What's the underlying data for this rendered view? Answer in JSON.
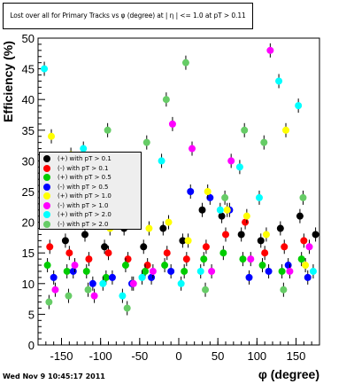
{
  "footer_timestamp": "Wed Nov  9 10:45:17 2011",
  "chart_data": {
    "type": "scatter",
    "title": "Lost over all for Primary Tracks vs φ (degree) at | η | <= 1.0 at pT > 0.11",
    "xlabel": "φ (degree)",
    "ylabel": "Efficiency (%)",
    "xlim": [
      -180,
      180
    ],
    "ylim": [
      0,
      50
    ],
    "x_ticks": [
      -150,
      -100,
      -50,
      0,
      50,
      100,
      150
    ],
    "y_ticks": [
      0,
      5,
      10,
      15,
      20,
      25,
      30,
      35,
      40,
      45,
      50
    ],
    "grid": false,
    "legend_position": "left-middle",
    "series": [
      {
        "name": "(+) with pT > 0.1",
        "color": "#000000",
        "x": [
          -170,
          -145,
          -120,
          -95,
          -70,
          -45,
          -20,
          5,
          30,
          55,
          80,
          105,
          130,
          155,
          175
        ],
        "y": [
          21,
          17,
          18,
          16,
          19,
          16,
          19,
          17,
          22,
          21,
          18,
          17,
          19,
          21,
          18
        ]
      },
      {
        "name": "(-) with pT > 0.1",
        "color": "#ff0000",
        "x": [
          -165,
          -140,
          -115,
          -90,
          -65,
          -40,
          -15,
          10,
          35,
          60,
          85,
          110,
          135,
          160
        ],
        "y": [
          16,
          15,
          14,
          15,
          14,
          13,
          15,
          14,
          16,
          18,
          20,
          15,
          16,
          17
        ]
      },
      {
        "name": "(+) with pT > 0.5",
        "color": "#00cc00",
        "x": [
          -168,
          -143,
          -118,
          -93,
          -68,
          -43,
          -18,
          7,
          32,
          57,
          82,
          107,
          132,
          157
        ],
        "y": [
          13,
          12,
          12,
          11,
          13,
          12,
          13,
          12,
          14,
          15,
          14,
          13,
          12,
          14
        ]
      },
      {
        "name": "(-) with pT > 0.5",
        "color": "#0000ff",
        "x": [
          -160,
          -135,
          -110,
          -85,
          -60,
          -35,
          -10,
          15,
          40,
          65,
          90,
          115,
          140,
          165
        ],
        "y": [
          11,
          12,
          10,
          11,
          10,
          11,
          12,
          25,
          24,
          22,
          11,
          12,
          13,
          11
        ]
      },
      {
        "name": "(+) with pT > 1.0",
        "color": "#ffff00",
        "x": [
          -163,
          -138,
          -113,
          -88,
          -63,
          -38,
          -13,
          12,
          37,
          62,
          87,
          112,
          137,
          162
        ],
        "y": [
          34,
          31,
          22,
          19,
          24,
          19,
          20,
          17,
          25,
          22,
          21,
          18,
          35,
          13
        ]
      },
      {
        "name": "(-) with pT > 1.0",
        "color": "#ff00ff",
        "x": [
          -158,
          -133,
          -108,
          -83,
          -58,
          -33,
          -8,
          17,
          42,
          67,
          92,
          117,
          142,
          167
        ],
        "y": [
          9,
          13,
          8,
          22,
          10,
          12,
          36,
          32,
          12,
          30,
          14,
          48,
          12,
          16
        ]
      },
      {
        "name": "(+) with pT > 2.0",
        "color": "#00ffff",
        "x": [
          -172,
          -147,
          -122,
          -97,
          -72,
          -47,
          -22,
          3,
          28,
          53,
          78,
          103,
          128,
          153,
          172
        ],
        "y": [
          45,
          30,
          32,
          10,
          8,
          11,
          30,
          10,
          12,
          22,
          29,
          24,
          43,
          39,
          12
        ]
      },
      {
        "name": "(-) with pT > 2.0",
        "color": "#66cc66",
        "x": [
          -166,
          -141,
          -116,
          -91,
          -66,
          -41,
          -16,
          9,
          34,
          59,
          84,
          109,
          134,
          159
        ],
        "y": [
          7,
          8,
          9,
          35,
          6,
          33,
          40,
          46,
          9,
          24,
          35,
          33,
          9,
          24
        ]
      }
    ]
  }
}
